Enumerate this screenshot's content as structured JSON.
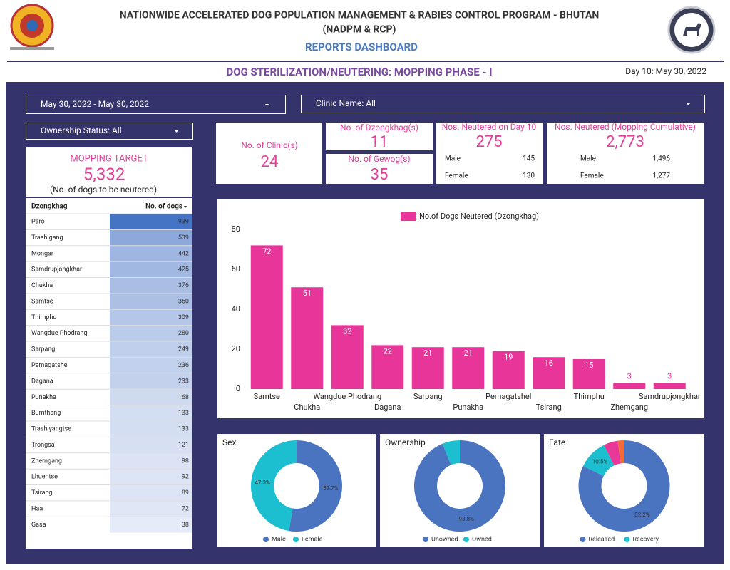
{
  "header": {
    "title": "NATIONWIDE ACCELERATED DOG POPULATION MANAGEMENT & RABIES CONTROL PROGRAM - BHUTAN",
    "subtitle": "(NADPM & RCP)",
    "dashboard": "REPORTS DASHBOARD",
    "section": "DOG STERILIZATION/NEUTERING: MOPPING PHASE - I",
    "day": "Day 10: May 30, 2022"
  },
  "filters": {
    "date": "May 30, 2022 - May 30, 2022",
    "clinic": "Clinic Name: All",
    "ownership": "Ownership Status: All"
  },
  "target": {
    "title": "MOPPING TARGET",
    "value": "5,332",
    "note": "(No. of dogs to be neutered)"
  },
  "kpis": {
    "clinics": {
      "title": "No. of Clinic(s)",
      "value": "24"
    },
    "dzongkhags": {
      "title": "No. of Dzongkhag(s)",
      "value": "11"
    },
    "gewogs": {
      "title": "No. of Gewog(s)",
      "value": "35"
    },
    "day": {
      "title": "Nos. Neutered on Day 10",
      "value": "275",
      "rows": [
        [
          "Male",
          "145"
        ],
        [
          "Female",
          "130"
        ]
      ]
    },
    "cumulative": {
      "title": "Nos. Neutered (Mopping Cumulative)",
      "value": "2,773",
      "rows": [
        [
          "Male",
          "1,496"
        ],
        [
          "Female",
          "1,277"
        ]
      ]
    }
  },
  "table": {
    "header": [
      "Dzongkhag",
      "No. of dogs"
    ],
    "rows": [
      [
        "Paro",
        939
      ],
      [
        "Trashigang",
        539
      ],
      [
        "Mongar",
        442
      ],
      [
        "Samdrupjongkhar",
        425
      ],
      [
        "Chukha",
        376
      ],
      [
        "Samtse",
        360
      ],
      [
        "Thimphu",
        309
      ],
      [
        "Wangdue Phodrang",
        280
      ],
      [
        "Sarpang",
        249
      ],
      [
        "Pemagatshel",
        236
      ],
      [
        "Dagana",
        233
      ],
      [
        "Punakha",
        168
      ],
      [
        "Bumthang",
        133
      ],
      [
        "Trashiyangtse",
        133
      ],
      [
        "Trongsa",
        121
      ],
      [
        "Zhemgang",
        98
      ],
      [
        "Lhuentse",
        92
      ],
      [
        "Tsirang",
        89
      ],
      [
        "Haa",
        72
      ],
      [
        "Gasa",
        38
      ]
    ]
  },
  "chart_data": [
    {
      "type": "bar",
      "categories": [
        "Samtse",
        "Chukha",
        "Wangdue Phodrang",
        "Dagana",
        "Sarpang",
        "Punakha",
        "Pemagatshel",
        "Tsirang",
        "Thimphu",
        "Zhemgang",
        "Samdrupjongkhar"
      ],
      "series": [
        {
          "name": "No.of Dogs Neutered (Dzongkhag)",
          "color": "#e8359a",
          "values": [
            72,
            51,
            32,
            22,
            21,
            21,
            19,
            16,
            15,
            3,
            3
          ]
        }
      ],
      "ylim": [
        0,
        80
      ],
      "yticks": [
        0,
        20,
        40,
        60,
        80
      ],
      "grid": false,
      "legend": "top"
    },
    {
      "type": "pie",
      "title": "Sex",
      "categories": [
        "Male",
        "Female"
      ],
      "values": [
        52.7,
        47.3
      ],
      "value_labels": [
        "52.7%",
        "47.3%"
      ],
      "colors": [
        "#4a74c0",
        "#1cbfcf"
      ]
    },
    {
      "type": "pie",
      "title": "Ownership",
      "categories": [
        "Unowned",
        "Owned"
      ],
      "values": [
        93.8,
        6.2
      ],
      "value_labels": [
        "93.8%",
        null
      ],
      "colors": [
        "#4a74c0",
        "#1cbfcf"
      ]
    },
    {
      "type": "pie",
      "title": "Fate",
      "categories": [
        "Released",
        "Recovery",
        null,
        null
      ],
      "values": [
        82.2,
        10.5,
        5.0,
        2.3
      ],
      "value_labels": [
        "82.2%",
        "10.5%",
        null,
        null
      ],
      "colors": [
        "#4a74c0",
        "#1cbfcf",
        "#e8399a",
        "#f26a36"
      ]
    }
  ]
}
